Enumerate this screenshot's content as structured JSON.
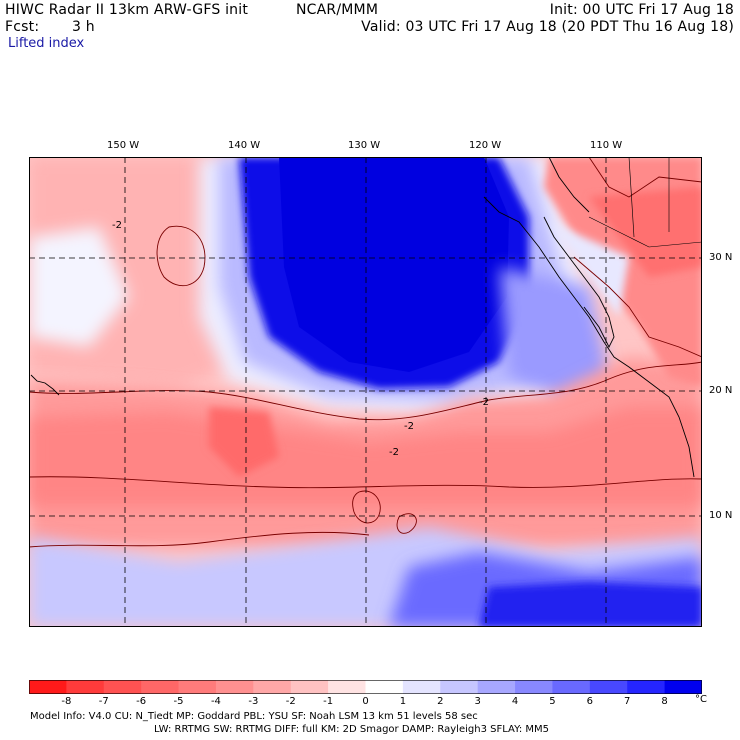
{
  "header": {
    "model_title": "HIWC Radar II 13km ARW-GFS init",
    "org": "NCAR/MMM",
    "init": "Init: 00 UTC Fri 17 Aug 18",
    "fcst_label": "Fcst:",
    "fcst_value": "3 h",
    "valid": "Valid: 03 UTC Fri 17 Aug 18 (20 PDT Thu 16 Aug 18)",
    "field": "Lifted index"
  },
  "map": {
    "lon_labels": [
      "150 W",
      "140 W",
      "130 W",
      "120 W",
      "110 W"
    ],
    "lat_labels": [
      "30 N",
      "20 N",
      "10 N"
    ],
    "contour_label": "-2"
  },
  "colorbar": {
    "unit": "°C",
    "tick_labels": [
      "-8",
      "-7",
      "-6",
      "-5",
      "-4",
      "-3",
      "-2",
      "-1",
      "0",
      "1",
      "2",
      "3",
      "4",
      "5",
      "6",
      "7",
      "8"
    ],
    "colors": [
      "#ff1a1a",
      "#ff3b3b",
      "#ff5252",
      "#ff6767",
      "#ff7b7b",
      "#ff9090",
      "#ffa7a7",
      "#ffc2c2",
      "#ffe3e3",
      "#ffffff",
      "#e4e4ff",
      "#c6c6ff",
      "#a7a7ff",
      "#8888ff",
      "#6969ff",
      "#4848ff",
      "#2525ff",
      "#0000ee"
    ]
  },
  "footer": {
    "line1": "Model Info: V4.0      CU: N_Tiedt  MP: Goddard      PBL: YSU       SF: Noah LSM     13 km    51 levels    58 sec",
    "line2": "LW: RRTMG    SW: RRTMG   DIFF: full   KM: 2D Smagor DAMP: Rayleigh3  SFLAY: MM5"
  }
}
